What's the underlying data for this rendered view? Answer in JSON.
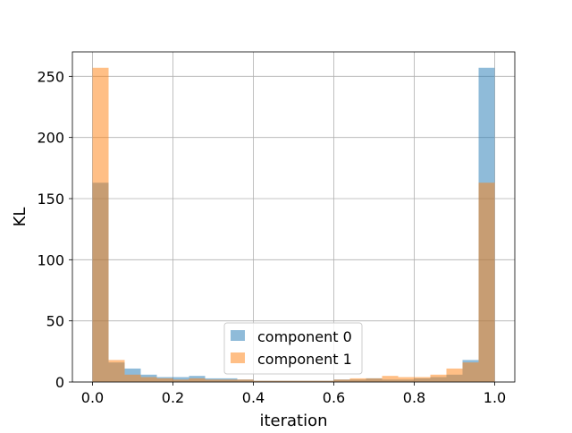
{
  "chart_data": {
    "type": "bar",
    "title": "",
    "xlabel": "iteration",
    "ylabel": "KL",
    "xlim": [
      -0.05,
      1.05
    ],
    "ylim": [
      0,
      270
    ],
    "xticks": [
      "0.0",
      "0.2",
      "0.4",
      "0.6",
      "0.8",
      "1.0"
    ],
    "yticks": [
      "0",
      "50",
      "100",
      "150",
      "200",
      "250"
    ],
    "grid": true,
    "legend_position": "lower center",
    "bin_edges": [
      0.0,
      0.04,
      0.08,
      0.12,
      0.16,
      0.2,
      0.24,
      0.28,
      0.32,
      0.36,
      0.4,
      0.44,
      0.48,
      0.52,
      0.56,
      0.6,
      0.64,
      0.68,
      0.72,
      0.76,
      0.8,
      0.84,
      0.88,
      0.92,
      0.96,
      1.0
    ],
    "series": [
      {
        "name": "component 0",
        "color": "#1f77b4",
        "alpha": 0.5,
        "values": [
          163,
          16,
          11,
          6,
          4,
          4,
          5,
          3,
          3,
          2,
          1,
          1,
          1,
          1,
          1,
          2,
          2,
          3,
          2,
          2,
          3,
          4,
          6,
          18,
          257
        ]
      },
      {
        "name": "component 1",
        "color": "#ff7f0e",
        "alpha": 0.5,
        "values": [
          257,
          18,
          6,
          4,
          3,
          2,
          3,
          2,
          2,
          2,
          1,
          1,
          1,
          1,
          1,
          2,
          3,
          3,
          5,
          4,
          4,
          6,
          11,
          16,
          163
        ]
      }
    ]
  }
}
